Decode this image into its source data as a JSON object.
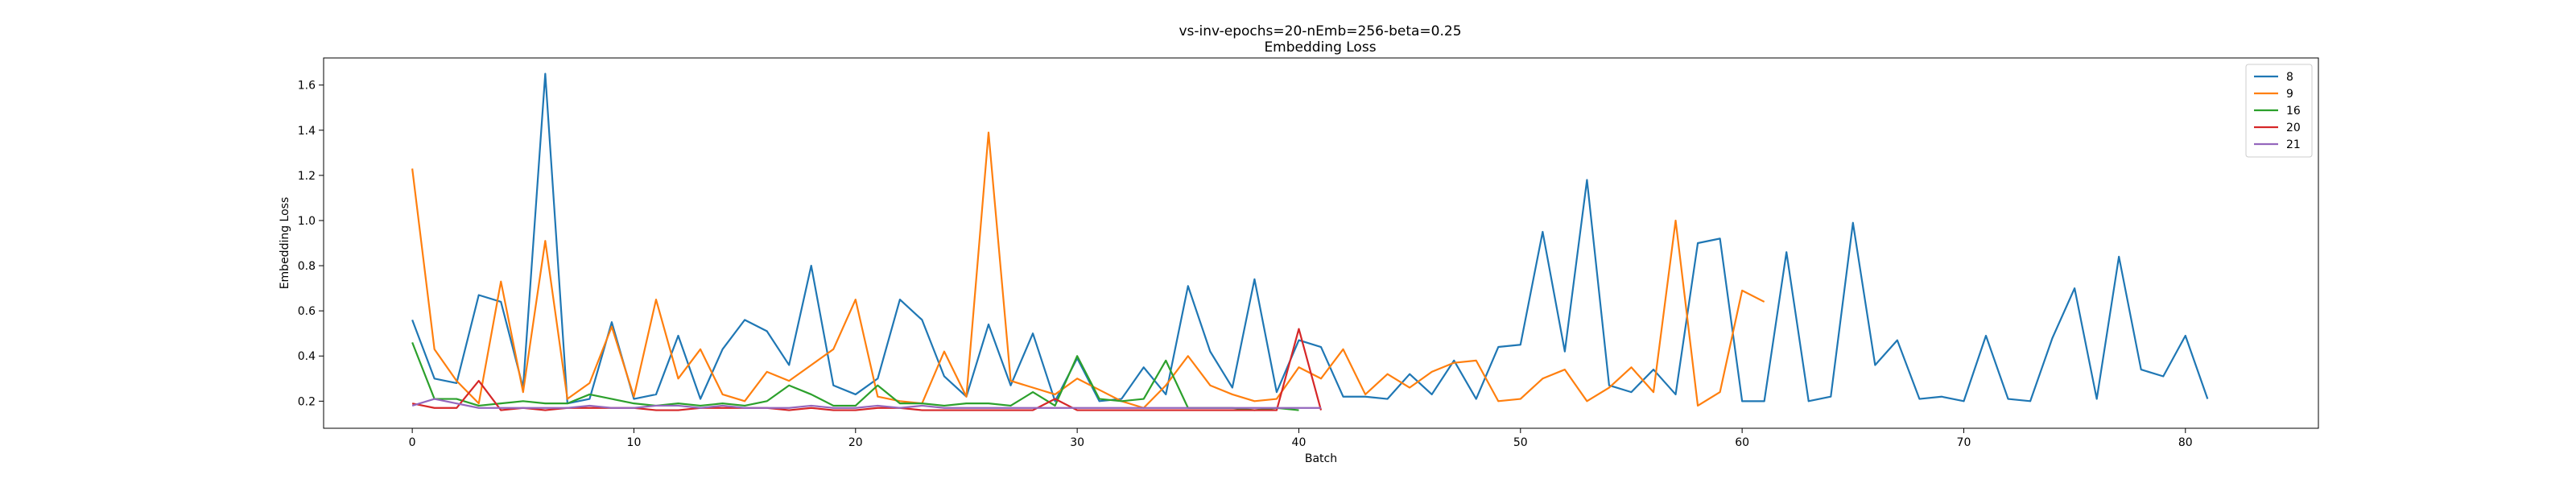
{
  "chart_data": {
    "type": "line",
    "title": "vs-inv-epochs=20-nEmb=256-beta=0.25",
    "subtitle": "Embedding Loss",
    "xlabel": "Batch",
    "ylabel": "Embedding Loss",
    "xlim": [
      -4,
      86
    ],
    "ylim": [
      0.08,
      1.72
    ],
    "xticks": [
      0,
      10,
      20,
      30,
      40,
      50,
      60,
      70,
      80
    ],
    "yticks": [
      0.2,
      0.4,
      0.6,
      0.8,
      1.0,
      1.2,
      1.4,
      1.6
    ],
    "ytick_labels": [
      "0.2",
      "0.4",
      "0.6",
      "0.8",
      "1.0",
      "1.2",
      "1.4",
      "1.6"
    ],
    "grid": false,
    "legend_position": "top-right",
    "series": [
      {
        "name": "8",
        "color": "#1f77b4",
        "values": [
          0.56,
          0.3,
          0.28,
          0.67,
          0.64,
          0.26,
          1.65,
          0.19,
          0.21,
          0.55,
          0.21,
          0.23,
          0.49,
          0.21,
          0.43,
          0.56,
          0.51,
          0.36,
          0.8,
          0.27,
          0.23,
          0.3,
          0.65,
          0.56,
          0.31,
          0.22,
          0.54,
          0.27,
          0.5,
          0.2,
          0.39,
          0.2,
          0.21,
          0.35,
          0.23,
          0.71,
          0.42,
          0.26,
          0.74,
          0.24,
          0.47,
          0.44,
          0.22,
          0.22,
          0.21,
          0.32,
          0.23,
          0.38,
          0.21,
          0.44,
          0.45,
          0.95,
          0.42,
          1.18,
          0.27,
          0.24,
          0.34,
          0.23,
          0.9,
          0.92,
          0.2,
          0.2,
          0.86,
          0.2,
          0.22,
          0.99,
          0.36,
          0.47,
          0.21,
          0.22,
          0.2,
          0.49,
          0.21,
          0.2,
          0.48,
          0.7,
          0.21,
          0.84,
          0.34,
          0.31,
          0.49,
          0.21
        ]
      },
      {
        "name": "9",
        "color": "#ff7f0e",
        "values": [
          1.23,
          0.43,
          0.29,
          0.19,
          0.73,
          0.24,
          0.91,
          0.21,
          0.28,
          0.53,
          0.22,
          0.65,
          0.3,
          0.43,
          0.23,
          0.2,
          0.33,
          0.29,
          0.36,
          0.43,
          0.65,
          0.22,
          0.2,
          0.19,
          0.42,
          0.22,
          1.39,
          0.29,
          0.26,
          0.23,
          0.3,
          0.25,
          0.2,
          0.17,
          0.27,
          0.4,
          0.27,
          0.23,
          0.2,
          0.21,
          0.35,
          0.3,
          0.43,
          0.23,
          0.32,
          0.26,
          0.33,
          0.37,
          0.38,
          0.2,
          0.21,
          0.3,
          0.34,
          0.2,
          0.26,
          0.35,
          0.24,
          1.0,
          0.18,
          0.24,
          0.69,
          0.64
        ]
      },
      {
        "name": "16",
        "color": "#2ca02c",
        "values": [
          0.46,
          0.21,
          0.21,
          0.18,
          0.19,
          0.2,
          0.19,
          0.19,
          0.23,
          0.21,
          0.19,
          0.18,
          0.19,
          0.18,
          0.19,
          0.18,
          0.2,
          0.27,
          0.23,
          0.18,
          0.18,
          0.27,
          0.19,
          0.19,
          0.18,
          0.19,
          0.19,
          0.18,
          0.24,
          0.18,
          0.4,
          0.21,
          0.2,
          0.21,
          0.38,
          0.17,
          0.17,
          0.17,
          0.16,
          0.17,
          0.16
        ]
      },
      {
        "name": "20",
        "color": "#d62728",
        "values": [
          0.19,
          0.17,
          0.17,
          0.29,
          0.16,
          0.17,
          0.16,
          0.17,
          0.17,
          0.17,
          0.17,
          0.16,
          0.16,
          0.17,
          0.17,
          0.17,
          0.17,
          0.16,
          0.17,
          0.16,
          0.16,
          0.17,
          0.17,
          0.16,
          0.16,
          0.16,
          0.16,
          0.16,
          0.16,
          0.21,
          0.16,
          0.16,
          0.16,
          0.16,
          0.16,
          0.16,
          0.16,
          0.16,
          0.16,
          0.16,
          0.52,
          0.16
        ]
      },
      {
        "name": "21",
        "color": "#9467bd",
        "values": [
          0.18,
          0.21,
          0.19,
          0.17,
          0.17,
          0.17,
          0.17,
          0.17,
          0.18,
          0.17,
          0.17,
          0.18,
          0.18,
          0.17,
          0.18,
          0.17,
          0.17,
          0.17,
          0.18,
          0.17,
          0.17,
          0.18,
          0.17,
          0.18,
          0.17,
          0.17,
          0.17,
          0.17,
          0.17,
          0.17,
          0.17,
          0.17,
          0.17,
          0.17,
          0.17,
          0.17,
          0.17,
          0.17,
          0.17,
          0.17,
          0.17,
          0.17
        ]
      }
    ]
  }
}
